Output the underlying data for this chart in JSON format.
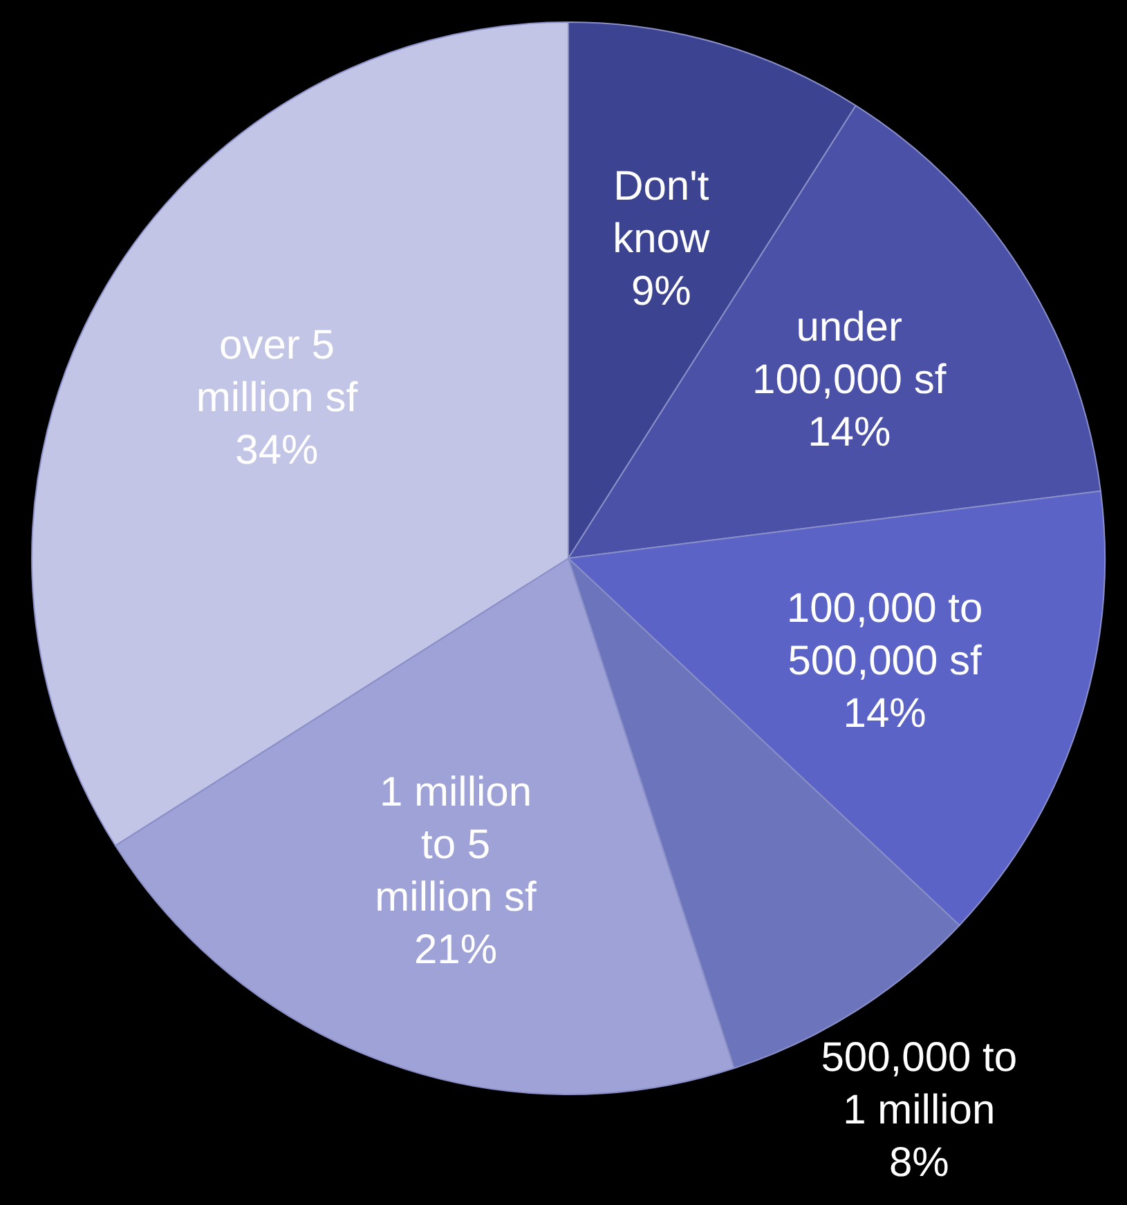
{
  "chart_data": {
    "type": "pie",
    "categories": [
      "Don't know",
      "under 100,000 sf",
      "100,000 to 500,000 sf",
      "500,000 to 1 million",
      "1 million to 5 million sf",
      "over 5 million sf"
    ],
    "values": [
      9,
      14,
      14,
      8,
      21,
      34
    ],
    "value_labels": [
      "9%",
      "14%",
      "14%",
      "8%",
      "21%",
      "34%"
    ],
    "colors": [
      "#3c4391",
      "#4a51a6",
      "#5b64c6",
      "#6c74bb",
      "#9ea2d6",
      "#c3c5e6"
    ]
  }
}
